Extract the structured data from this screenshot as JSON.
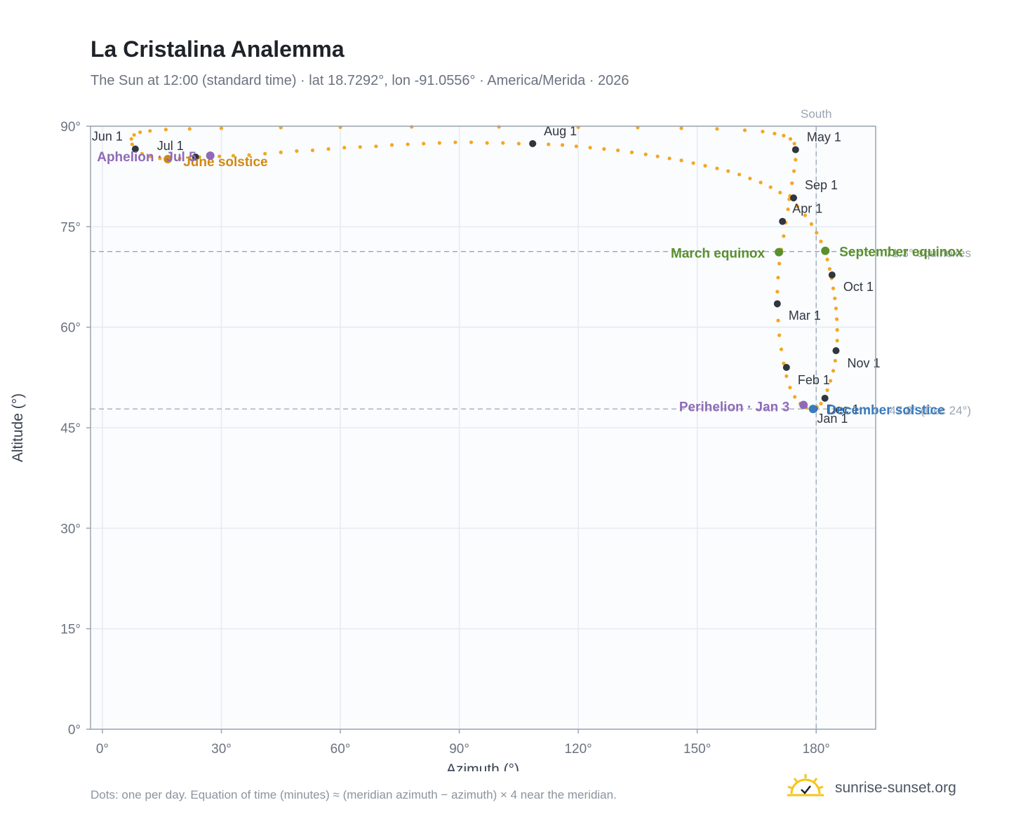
{
  "title": "La Cristalina Analemma",
  "subtitle": "The Sun at 12:00 (standard time) · lat 18.7292°, lon -91.0556° · America/Merida · 2026",
  "footnote": "Dots: one per day. Equation of time (minutes) ≈ (meridian azimuth − azimuth) × 4 near the meridian.",
  "brand": {
    "name": "sunrise-sunset.org",
    "icon": "sun-check-icon"
  },
  "colors": {
    "path": "#f5a623",
    "month": "#2f3640",
    "equinox": "#5a8f2e",
    "june_solstice": "#d08a12",
    "december_solstice": "#3a7bbf",
    "apsis": "#8e6bb8",
    "reference": "#9aa5b1"
  },
  "chart_data": {
    "type": "scatter",
    "xlabel": "Azimuth (°)",
    "ylabel": "Altitude (°)",
    "xlim": [
      -3,
      195
    ],
    "ylim": [
      0,
      90
    ],
    "x_ticks": [
      0,
      30,
      60,
      90,
      120,
      150,
      180
    ],
    "y_ticks": [
      0,
      15,
      30,
      45,
      60,
      75,
      90
    ],
    "x_tick_labels": [
      "0°",
      "30°",
      "60°",
      "90°",
      "120°",
      "150°",
      "180°"
    ],
    "y_tick_labels": [
      "0°",
      "15°",
      "30°",
      "45°",
      "60°",
      "75°",
      "90°"
    ],
    "grid": true,
    "reference_lines": [
      {
        "axis": "x",
        "value": 180,
        "label": "South"
      },
      {
        "axis": "y",
        "value": 71.3,
        "label": "71.3° equinoxes"
      },
      {
        "axis": "y",
        "value": 47.8,
        "label": "47.8° (Dec 24°)"
      }
    ],
    "path_points": [
      [
        182.0,
        49.3
      ],
      [
        182.8,
        50.6
      ],
      [
        183.6,
        52.0
      ],
      [
        184.3,
        53.5
      ],
      [
        184.8,
        55.0
      ],
      [
        185.1,
        56.5
      ],
      [
        185.3,
        58.0
      ],
      [
        185.3,
        59.6
      ],
      [
        185.2,
        61.2
      ],
      [
        185.0,
        62.8
      ],
      [
        184.7,
        64.3
      ],
      [
        184.3,
        65.8
      ],
      [
        183.9,
        67.3
      ],
      [
        183.4,
        68.7
      ],
      [
        182.8,
        70.1
      ],
      [
        182.1,
        71.4
      ],
      [
        181.2,
        72.8
      ],
      [
        180.1,
        74.1
      ],
      [
        178.8,
        75.4
      ],
      [
        177.2,
        76.7
      ],
      [
        175.3,
        78.0
      ],
      [
        173.2,
        79.1
      ],
      [
        170.9,
        80.1
      ],
      [
        168.5,
        80.9
      ],
      [
        166.0,
        81.6
      ],
      [
        163.3,
        82.2
      ],
      [
        160.6,
        82.8
      ],
      [
        157.8,
        83.3
      ],
      [
        155.0,
        83.7
      ],
      [
        152.0,
        84.1
      ],
      [
        149.0,
        84.5
      ],
      [
        146.0,
        84.9
      ],
      [
        143.0,
        85.2
      ],
      [
        140.0,
        85.5
      ],
      [
        137.0,
        85.8
      ],
      [
        133.5,
        86.1
      ],
      [
        130.0,
        86.4
      ],
      [
        126.5,
        86.6
      ],
      [
        123.0,
        86.8
      ],
      [
        119.5,
        87.0
      ],
      [
        116.0,
        87.2
      ],
      [
        112.5,
        87.3
      ],
      [
        109.0,
        87.4
      ],
      [
        105.0,
        87.4
      ],
      [
        101.0,
        87.5
      ],
      [
        97.0,
        87.5
      ],
      [
        93.0,
        87.6
      ],
      [
        89.0,
        87.6
      ],
      [
        85.0,
        87.5
      ],
      [
        81.0,
        87.4
      ],
      [
        77.0,
        87.3
      ],
      [
        73.0,
        87.2
      ],
      [
        69.0,
        87.0
      ],
      [
        65.0,
        86.9
      ],
      [
        61.0,
        86.8
      ],
      [
        57.0,
        86.6
      ],
      [
        53.0,
        86.4
      ],
      [
        49.0,
        86.3
      ],
      [
        45.0,
        86.1
      ],
      [
        41.0,
        85.9
      ],
      [
        37.0,
        85.7
      ],
      [
        33.0,
        85.6
      ],
      [
        29.5,
        85.5
      ],
      [
        27.0,
        85.5
      ],
      [
        24.5,
        85.4
      ],
      [
        22.0,
        85.3
      ],
      [
        19.5,
        85.2
      ],
      [
        17.0,
        85.1
      ],
      [
        14.5,
        85.2
      ],
      [
        12.0,
        85.5
      ],
      [
        10.0,
        85.9
      ],
      [
        8.5,
        86.5
      ],
      [
        7.5,
        87.3
      ],
      [
        7.3,
        88.1
      ],
      [
        8.0,
        88.7
      ],
      [
        9.5,
        89.1
      ],
      [
        12.0,
        89.3
      ],
      [
        16.0,
        89.5
      ],
      [
        22.0,
        89.6
      ],
      [
        30.0,
        89.7
      ],
      [
        45.0,
        89.8
      ],
      [
        60.0,
        89.85
      ],
      [
        78.0,
        89.9
      ],
      [
        100.0,
        89.9
      ],
      [
        120.0,
        89.85
      ],
      [
        135.0,
        89.8
      ],
      [
        146.0,
        89.7
      ],
      [
        155.0,
        89.6
      ],
      [
        162.0,
        89.4
      ],
      [
        166.5,
        89.2
      ],
      [
        169.5,
        88.9
      ],
      [
        171.8,
        88.6
      ],
      [
        173.5,
        88.1
      ],
      [
        174.5,
        87.4
      ],
      [
        175.0,
        86.4
      ],
      [
        174.8,
        85.0
      ],
      [
        174.4,
        83.3
      ],
      [
        173.9,
        81.5
      ],
      [
        173.4,
        79.6
      ],
      [
        172.9,
        77.6
      ],
      [
        172.3,
        75.6
      ],
      [
        171.8,
        73.6
      ],
      [
        171.2,
        71.6
      ],
      [
        170.7,
        69.5
      ],
      [
        170.4,
        67.4
      ],
      [
        170.2,
        65.3
      ],
      [
        170.2,
        63.2
      ],
      [
        170.4,
        61.0
      ],
      [
        170.7,
        58.8
      ],
      [
        171.2,
        56.7
      ],
      [
        171.8,
        54.6
      ],
      [
        172.5,
        52.7
      ],
      [
        173.4,
        51.0
      ],
      [
        174.6,
        49.6
      ],
      [
        176.0,
        48.6
      ],
      [
        177.5,
        48.0
      ],
      [
        179.0,
        47.8
      ],
      [
        180.2,
        48.1
      ],
      [
        181.2,
        48.6
      ],
      [
        182.0,
        49.3
      ]
    ],
    "month_markers": [
      {
        "label": "Jan 1",
        "x": 179.5,
        "y": 47.8
      },
      {
        "label": "Feb 1",
        "x": 172.5,
        "y": 54.0
      },
      {
        "label": "Mar 1",
        "x": 170.2,
        "y": 63.5
      },
      {
        "label": "Apr 1",
        "x": 171.5,
        "y": 75.8
      },
      {
        "label": "May 1",
        "x": 174.8,
        "y": 86.5
      },
      {
        "label": "Jun 1",
        "x": 8.3,
        "y": 86.6
      },
      {
        "label": "Jul 1",
        "x": 23.5,
        "y": 85.4
      },
      {
        "label": "Aug 1",
        "x": 108.5,
        "y": 87.4
      },
      {
        "label": "Sep 1",
        "x": 174.3,
        "y": 79.3
      },
      {
        "label": "Oct 1",
        "x": 184.0,
        "y": 67.8
      },
      {
        "label": "Nov 1",
        "x": 185.0,
        "y": 56.5
      },
      {
        "label": "Dec 1",
        "x": 182.2,
        "y": 49.4
      }
    ],
    "events": [
      {
        "label": "March equinox",
        "x": 170.6,
        "y": 71.2,
        "kind": "equinox"
      },
      {
        "label": "September equinox",
        "x": 182.3,
        "y": 71.4,
        "kind": "equinox"
      },
      {
        "label": "June solstice",
        "x": 16.5,
        "y": 85.1,
        "kind": "june_solstice"
      },
      {
        "label": "December solstice",
        "x": 179.2,
        "y": 47.8,
        "kind": "december_solstice"
      },
      {
        "label": "Perihelion · Jan 3",
        "x": 176.8,
        "y": 48.4,
        "kind": "apsis"
      },
      {
        "label": "Aphelion · Jul 5",
        "x": 27.2,
        "y": 85.6,
        "kind": "apsis"
      }
    ]
  }
}
